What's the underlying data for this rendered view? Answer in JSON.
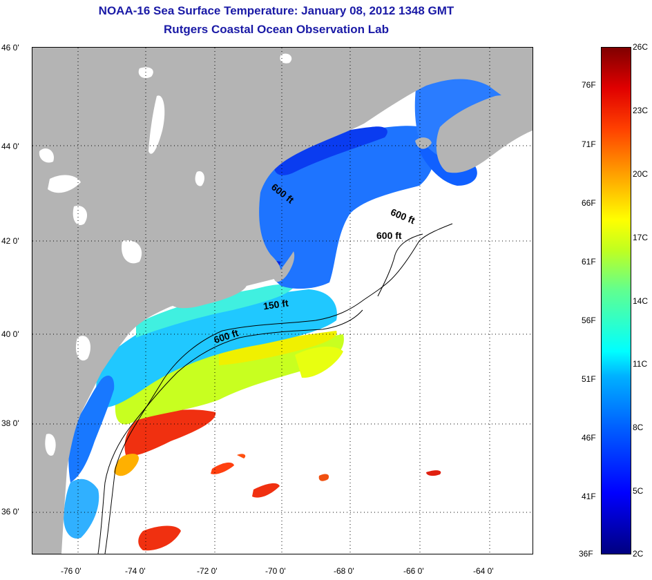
{
  "header": {
    "title": "NOAA-16 Sea Surface Temperature:  January 08, 2012 1348 GMT",
    "subtitle": "Rutgers Coastal Ocean Observation Lab"
  },
  "map": {
    "lat_labels": [
      "46 0'",
      "44 0'",
      "42 0'",
      "40 0'",
      "38 0'",
      "36 0'"
    ],
    "lon_labels": [
      "-76 0'",
      "-74 0'",
      "-72 0'",
      "-70 0'",
      "-68 0'",
      "-66 0'",
      "-64 0'"
    ],
    "depth_labels": [
      "600 ft",
      "600 ft",
      "600 ft",
      "150 ft",
      "600 ft"
    ],
    "colors": {
      "land": "#b4b4b4",
      "no_data": "#ffffff",
      "graticule": "#000000"
    }
  },
  "colorbar": {
    "celsius_labels": [
      "26C",
      "23C",
      "20C",
      "17C",
      "14C",
      "11C",
      "8C",
      "5C",
      "2C"
    ],
    "fahrenheit_labels": [
      "76F",
      "71F",
      "66F",
      "61F",
      "56F",
      "51F",
      "46F",
      "41F",
      "36F"
    ]
  }
}
